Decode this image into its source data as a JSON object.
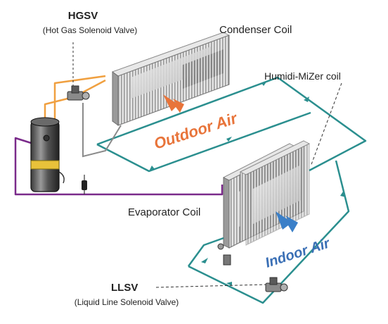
{
  "labels": {
    "hgsv": "HGSV",
    "hgsv_desc": "(Hot Gas Solenoid Valve)",
    "condenser": "Condenser Coil",
    "humidimizer": "Humidi-MiZer coil",
    "outdoor_air": "Outdoor Air",
    "evaporator": "Evaporator Coil",
    "indoor_air": "Indoor Air",
    "llsv": "LLSV",
    "llsv_desc": "(Liquid Line Solenoid Valve)"
  },
  "colors": {
    "hot_gas_line": "#f0a040",
    "teal_loop": "#2b8f8f",
    "purple_line": "#7a2a8a",
    "gray_line": "#8a8a8a",
    "outdoor_air": "#e8743a",
    "indoor_air": "#3a6fb5",
    "air_arrow_outdoor": "#e8743a",
    "air_arrow_indoor": "#3a7fc8",
    "compressor_band": "#e8c23a"
  },
  "icons": {
    "compressor": "compressor-icon",
    "hgsv_valve": "valve-icon",
    "llsv_valve": "valve-icon",
    "filter_drier": "filter-drier-icon"
  }
}
